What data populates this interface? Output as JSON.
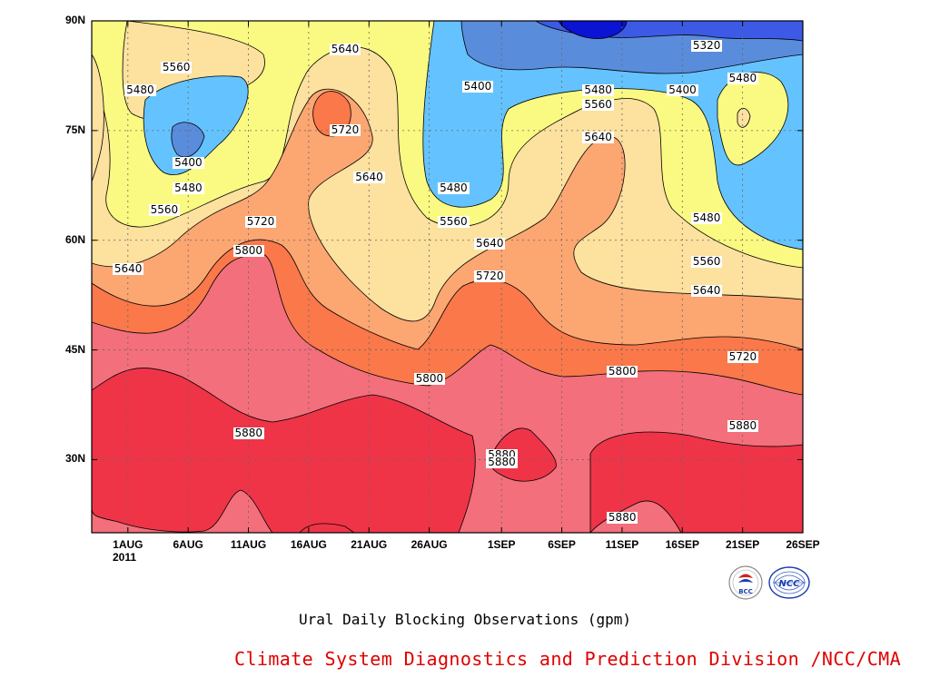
{
  "chart_data": {
    "type": "contour",
    "title": "Ural Daily Blocking Observations (gpm)",
    "credit": "Climate System Diagnostics and Prediction Division /NCC/CMA",
    "x_ticks": [
      "1AUG",
      "6AUG",
      "11AUG",
      "16AUG",
      "21AUG",
      "26AUG",
      "1SEP",
      "6SEP",
      "11SEP",
      "16SEP",
      "21SEP",
      "26SEP"
    ],
    "x_year_label": "2011",
    "x_range": [
      "2011-07-29",
      "2011-09-26"
    ],
    "y_ticks": [
      "30N",
      "45N",
      "60N",
      "75N",
      "90N"
    ],
    "y_range_deg": [
      20,
      90
    ],
    "contour_levels_gpm": [
      5320,
      5400,
      5480,
      5560,
      5640,
      5720,
      5800,
      5880
    ],
    "fill_colors": {
      "below_5320": "#0a14d2",
      "5320_5400": "#3c5ae6",
      "5400_5480": "#5a8cdc",
      "5480_5560": "#64c3ff",
      "5560_5640": "#fafa82",
      "5640_5720": "#fce19f",
      "5720_5800": "#fca672",
      "5800_5880": "#fa784a",
      "5880_5960": "#f26f7b",
      "above_5960": "#ef3448"
    },
    "contour_labels": [
      {
        "value": "5320",
        "date": "2011-09-18",
        "lat": 86.5
      },
      {
        "value": "5480",
        "date": "2011-09-21",
        "lat": 82
      },
      {
        "value": "5400",
        "date": "2011-09-16",
        "lat": 80.5
      },
      {
        "value": "5400",
        "date": "2011-08-30",
        "lat": 81
      },
      {
        "value": "5480",
        "date": "2011-09-09",
        "lat": 80.5
      },
      {
        "value": "5560",
        "date": "2011-09-09",
        "lat": 78.5
      },
      {
        "value": "5640",
        "date": "2011-09-09",
        "lat": 74
      },
      {
        "value": "5480",
        "date": "2011-09-18",
        "lat": 63
      },
      {
        "value": "5560",
        "date": "2011-09-18",
        "lat": 57
      },
      {
        "value": "5640",
        "date": "2011-09-18",
        "lat": 53
      },
      {
        "value": "5720",
        "date": "2011-09-21",
        "lat": 44
      },
      {
        "value": "5800",
        "date": "2011-09-11",
        "lat": 42
      },
      {
        "value": "5880",
        "date": "2011-09-21",
        "lat": 34.5
      },
      {
        "value": "5880",
        "date": "2011-09-11",
        "lat": 22
      },
      {
        "value": "5880",
        "date": "2011-09-01",
        "lat": 30.5
      },
      {
        "value": "5880",
        "date": "2011-09-01",
        "lat": 29.5
      },
      {
        "value": "5640",
        "date": "2011-08-19",
        "lat": 86
      },
      {
        "value": "5720",
        "date": "2011-08-19",
        "lat": 75
      },
      {
        "value": "5640",
        "date": "2011-08-21",
        "lat": 68.5
      },
      {
        "value": "5480",
        "date": "2011-08-28",
        "lat": 67
      },
      {
        "value": "5560",
        "date": "2011-08-28",
        "lat": 62.5
      },
      {
        "value": "5640",
        "date": "2011-08-31",
        "lat": 59.5
      },
      {
        "value": "5720",
        "date": "2011-08-31",
        "lat": 55
      },
      {
        "value": "5800",
        "date": "2011-08-26",
        "lat": 41
      },
      {
        "value": "5880",
        "date": "2011-08-11",
        "lat": 33.5
      },
      {
        "value": "5720",
        "date": "2011-08-12",
        "lat": 62.5
      },
      {
        "value": "5800",
        "date": "2011-08-11",
        "lat": 58.5
      },
      {
        "value": "5560",
        "date": "2011-08-05",
        "lat": 83.5
      },
      {
        "value": "5480",
        "date": "2011-08-02",
        "lat": 80.5
      },
      {
        "value": "5400",
        "date": "2011-08-06",
        "lat": 70.5
      },
      {
        "value": "5480",
        "date": "2011-08-06",
        "lat": 67
      },
      {
        "value": "5560",
        "date": "2011-08-04",
        "lat": 64
      },
      {
        "value": "5640",
        "date": "2011-08-01",
        "lat": 56
      }
    ],
    "grid": true,
    "grid_style": "dotted"
  }
}
